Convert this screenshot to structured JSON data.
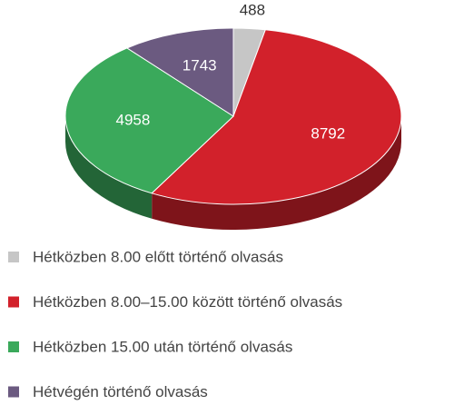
{
  "chart_data": {
    "type": "pie",
    "categories": [
      "Hétközben 8.00 előtt történő olvasás",
      "Hétközben 8.00–15.00 között történő olvasás",
      "Hétközben 15.00 után történő olvasás",
      "Hétvégén történő olvasás"
    ],
    "values": [
      488,
      8792,
      4958,
      1743
    ],
    "colors": [
      "#c6c6c6",
      "#d2212b",
      "#3aa95b",
      "#6b5a80"
    ],
    "legend": "bottom"
  }
}
